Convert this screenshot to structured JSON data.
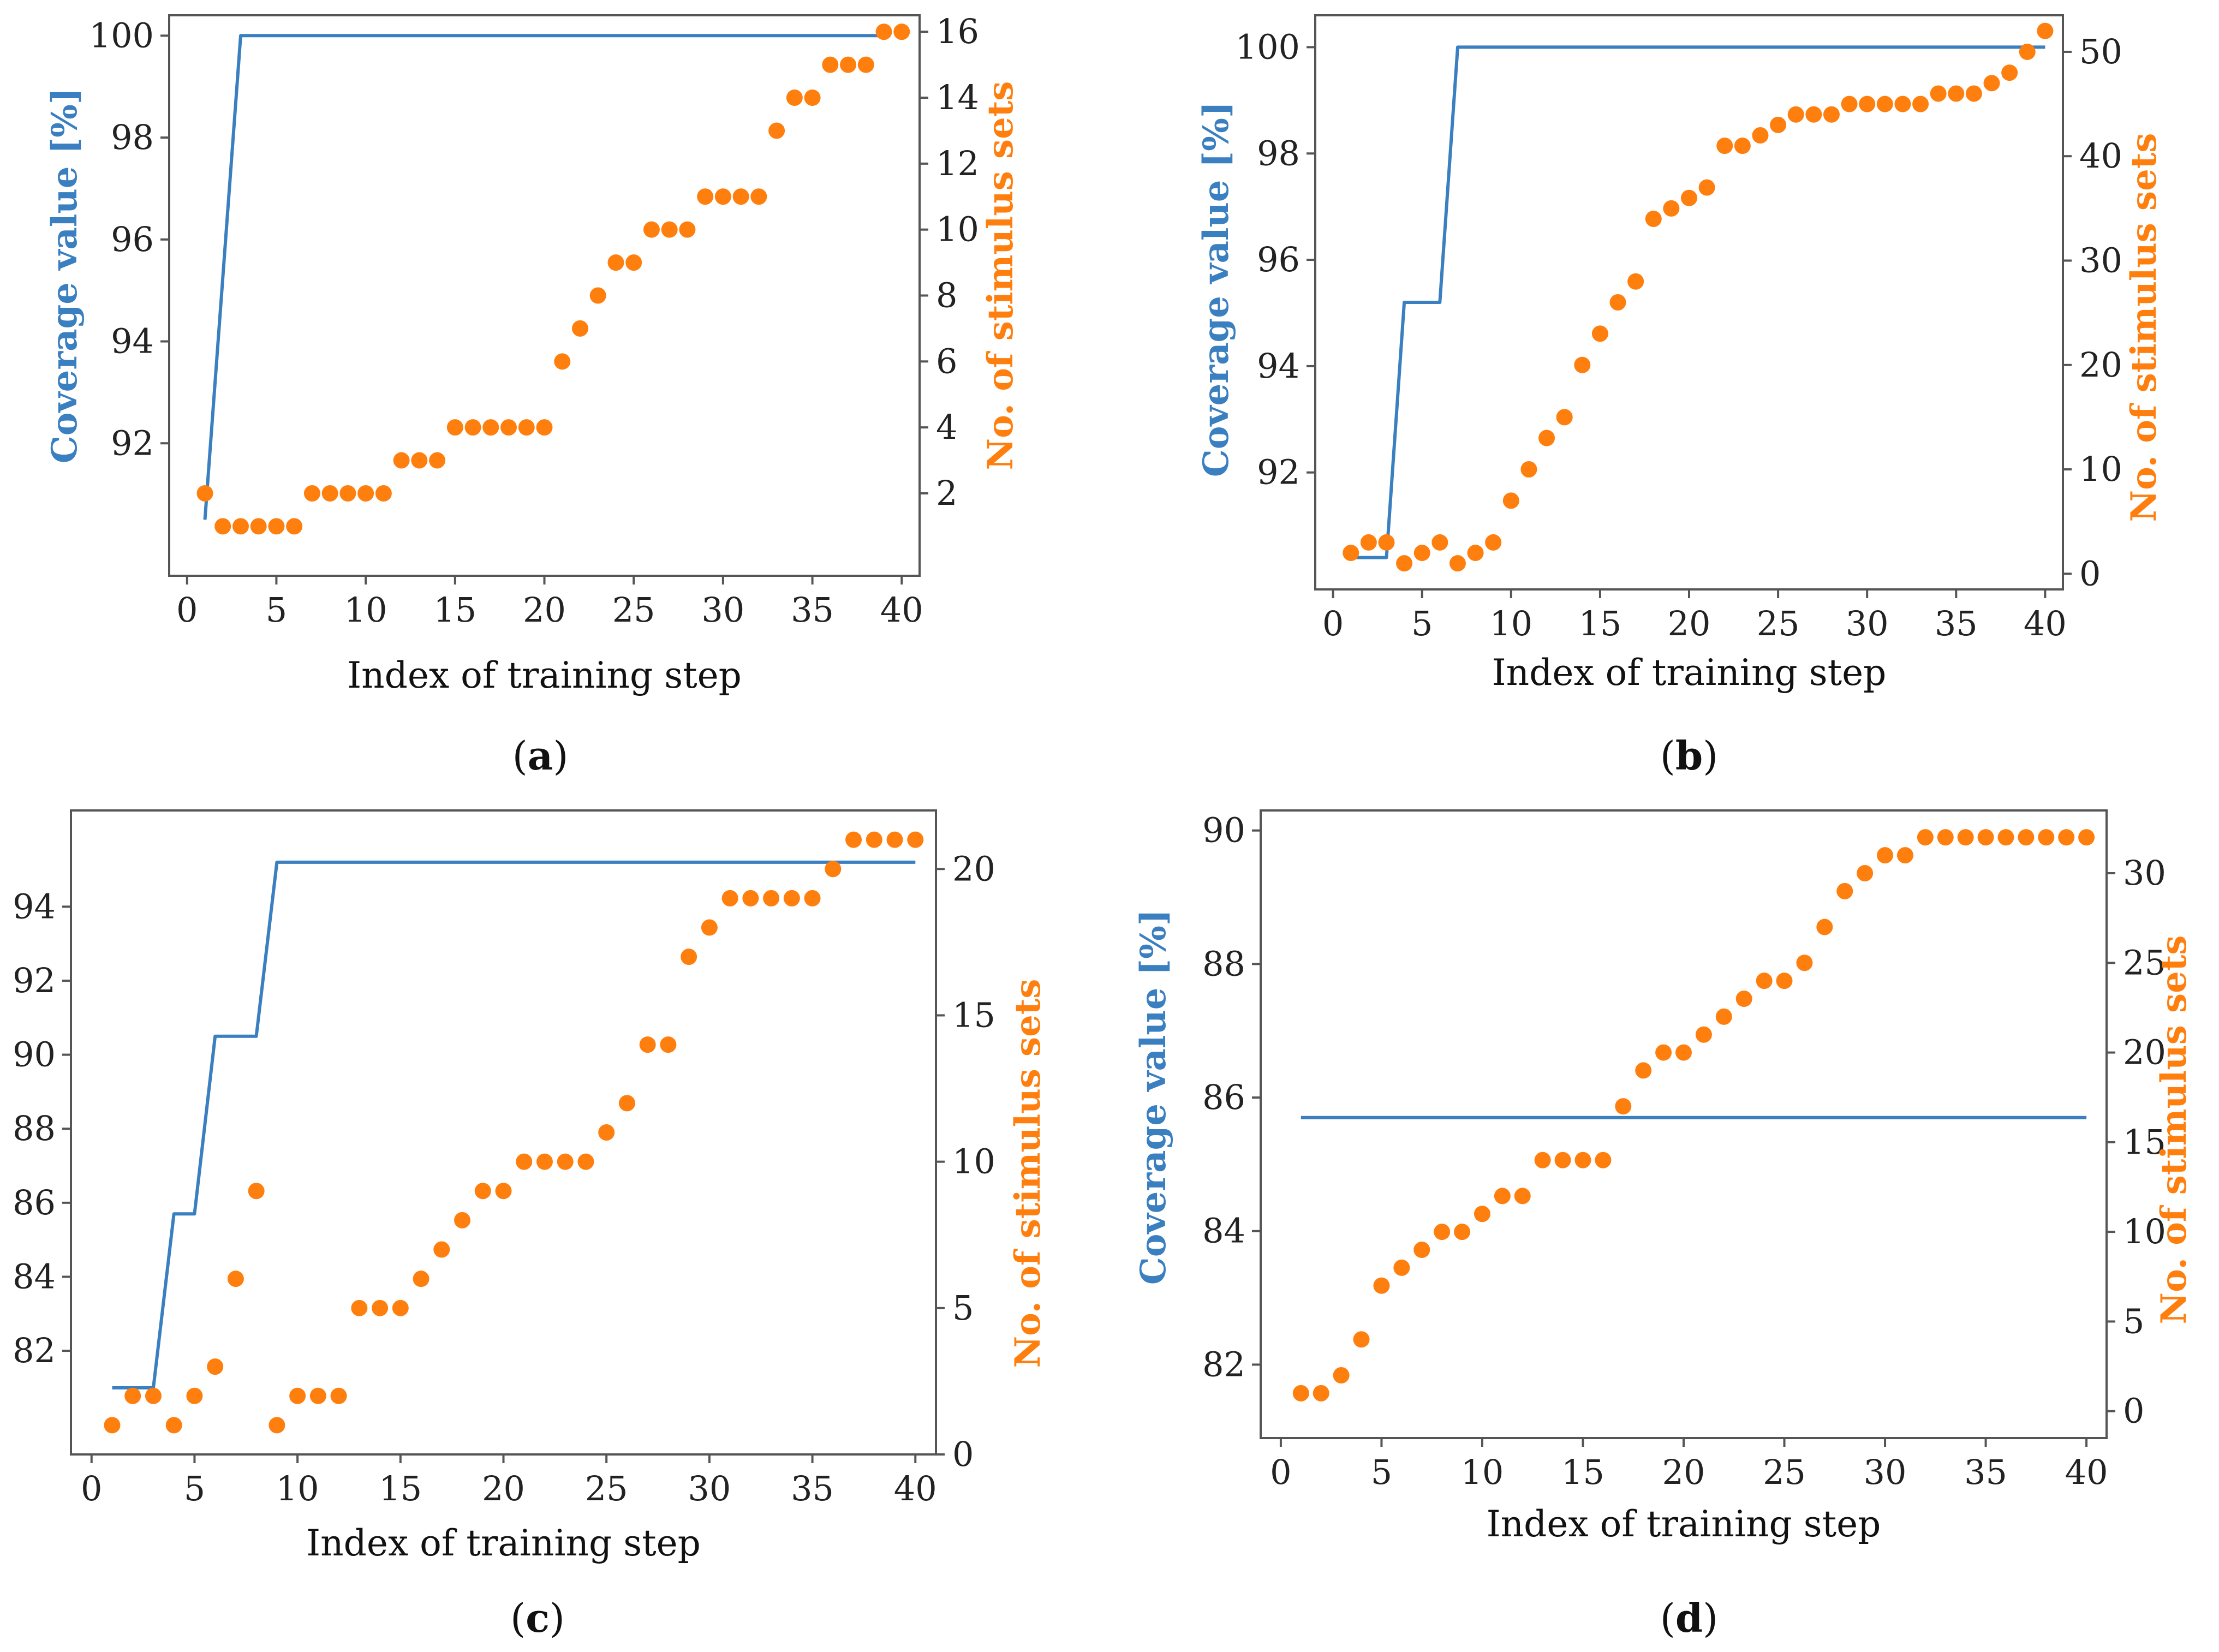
{
  "colors": {
    "coverage": "#3a7fc0",
    "stimulus": "#ff7f0e",
    "axis": "#555555",
    "text": "#111111"
  },
  "chart_data": [
    {
      "id": "a",
      "panel_label": "a",
      "type": "line+scatter",
      "xlabel": "Index of training step",
      "ylabel_left": "Coverage value [%]",
      "ylabel_right": "No. of stimulus sets",
      "xlim": [
        -1,
        41
      ],
      "xticks": [
        0,
        5,
        10,
        15,
        20,
        25,
        30,
        35,
        40
      ],
      "ylim_left": [
        89.4,
        100.4
      ],
      "yticks_left": [
        92,
        94,
        96,
        98,
        100
      ],
      "ylim_right": [
        -0.5,
        16.5
      ],
      "yticks_right": [
        2,
        4,
        6,
        8,
        10,
        12,
        14,
        16
      ],
      "coverage": {
        "x": [
          1,
          3,
          39
        ],
        "y": [
          90.5,
          100,
          100
        ]
      },
      "stimulus": {
        "x": [
          1,
          2,
          3,
          4,
          5,
          6,
          7,
          8,
          9,
          10,
          11,
          12,
          13,
          14,
          15,
          16,
          17,
          18,
          19,
          20,
          21,
          22,
          23,
          24,
          25,
          26,
          27,
          28,
          29,
          30,
          31,
          32,
          33,
          34,
          35,
          36,
          37,
          38,
          39,
          40
        ],
        "y": [
          2,
          1,
          1,
          1,
          1,
          1,
          2,
          2,
          2,
          2,
          2,
          3,
          3,
          3,
          4,
          4,
          4,
          4,
          4,
          4,
          6,
          7,
          8,
          9,
          9,
          10,
          10,
          10,
          11,
          11,
          11,
          11,
          13,
          14,
          14,
          15,
          15,
          15,
          16,
          16
        ]
      }
    },
    {
      "id": "b",
      "panel_label": "b",
      "type": "line+scatter",
      "xlabel": "Index of training step",
      "ylabel_left": "Coverage value [%]",
      "ylabel_right": "No. of stimulus sets",
      "xlim": [
        -1,
        41
      ],
      "xticks": [
        0,
        5,
        10,
        15,
        20,
        25,
        30,
        35,
        40
      ],
      "ylim_left": [
        89.8,
        100.6
      ],
      "yticks_left": [
        92,
        94,
        96,
        98,
        100
      ],
      "ylim_right": [
        -1.5,
        53.5
      ],
      "yticks_right": [
        0,
        10,
        20,
        30,
        40,
        50
      ],
      "coverage": {
        "x": [
          1,
          3,
          4,
          6,
          7,
          40
        ],
        "y": [
          90.4,
          90.4,
          95.2,
          95.2,
          100,
          100
        ]
      },
      "stimulus": {
        "x": [
          1,
          2,
          3,
          4,
          5,
          6,
          7,
          8,
          9,
          10,
          11,
          12,
          13,
          14,
          15,
          16,
          17,
          18,
          19,
          20,
          21,
          22,
          23,
          24,
          25,
          26,
          27,
          28,
          29,
          30,
          31,
          32,
          33,
          34,
          35,
          36,
          37,
          38,
          39,
          40
        ],
        "y": [
          2,
          3,
          3,
          1,
          2,
          3,
          1,
          2,
          3,
          7,
          10,
          13,
          15,
          20,
          23,
          26,
          28,
          34,
          35,
          36,
          37,
          41,
          41,
          42,
          43,
          44,
          44,
          44,
          45,
          45,
          45,
          45,
          45,
          46,
          46,
          46,
          47,
          48,
          50,
          52
        ]
      }
    },
    {
      "id": "c",
      "panel_label": "c",
      "type": "line+scatter",
      "xlabel": "Index of training step",
      "ylabel_left": "",
      "ylabel_right": "No. of stimulus sets",
      "xlim": [
        -1,
        41
      ],
      "xticks": [
        0,
        5,
        10,
        15,
        20,
        25,
        30,
        35,
        40
      ],
      "ylim_left": [
        79.2,
        96.6
      ],
      "yticks_left": [
        82,
        84,
        86,
        88,
        90,
        92,
        94
      ],
      "ylim_right": [
        0,
        22
      ],
      "yticks_right": [
        0,
        5,
        10,
        15,
        20
      ],
      "coverage": {
        "x": [
          1,
          3,
          4,
          5,
          6,
          8,
          9,
          40
        ],
        "y": [
          81,
          81,
          85.7,
          85.7,
          90.5,
          90.5,
          95.2,
          95.2
        ]
      },
      "stimulus": {
        "x": [
          1,
          2,
          3,
          4,
          5,
          6,
          7,
          8,
          9,
          10,
          11,
          12,
          13,
          14,
          15,
          16,
          17,
          18,
          19,
          20,
          21,
          22,
          23,
          24,
          25,
          26,
          27,
          28,
          29,
          30,
          31,
          32,
          33,
          34,
          35,
          36,
          37,
          38,
          39,
          40
        ],
        "y": [
          1,
          2,
          2,
          1,
          2,
          3,
          6,
          9,
          1,
          2,
          2,
          2,
          5,
          5,
          5,
          6,
          7,
          8,
          9,
          9,
          10,
          10,
          10,
          10,
          11,
          12,
          14,
          14,
          17,
          18,
          19,
          19,
          19,
          19,
          19,
          20,
          21,
          21,
          21,
          21
        ]
      }
    },
    {
      "id": "d",
      "panel_label": "d",
      "type": "line+scatter",
      "xlabel": "Index of training step",
      "ylabel_left": "Coverage value [%]",
      "ylabel_right": "No. of stimulus sets",
      "xlim": [
        -1,
        41
      ],
      "xticks": [
        0,
        5,
        10,
        15,
        20,
        25,
        30,
        35,
        40
      ],
      "ylim_left": [
        80.9,
        90.3
      ],
      "yticks_left": [
        82,
        84,
        86,
        88,
        90
      ],
      "ylim_right": [
        -1.5,
        33.5
      ],
      "yticks_right": [
        0,
        5,
        10,
        15,
        20,
        25,
        30
      ],
      "coverage": {
        "x": [
          1,
          40
        ],
        "y": [
          85.7,
          85.7
        ]
      },
      "stimulus": {
        "x": [
          1,
          2,
          3,
          4,
          5,
          6,
          7,
          8,
          9,
          10,
          11,
          12,
          13,
          14,
          15,
          16,
          17,
          18,
          19,
          20,
          21,
          22,
          23,
          24,
          25,
          26,
          27,
          28,
          29,
          30,
          31,
          32,
          33,
          34,
          35,
          36,
          37,
          38,
          39,
          40
        ],
        "y": [
          1,
          1,
          2,
          4,
          7,
          8,
          9,
          10,
          10,
          11,
          12,
          12,
          14,
          14,
          14,
          14,
          17,
          19,
          20,
          20,
          21,
          22,
          23,
          24,
          24,
          25,
          27,
          29,
          30,
          31,
          31,
          32,
          32,
          32,
          32,
          32,
          32,
          32,
          32,
          32
        ]
      }
    }
  ]
}
